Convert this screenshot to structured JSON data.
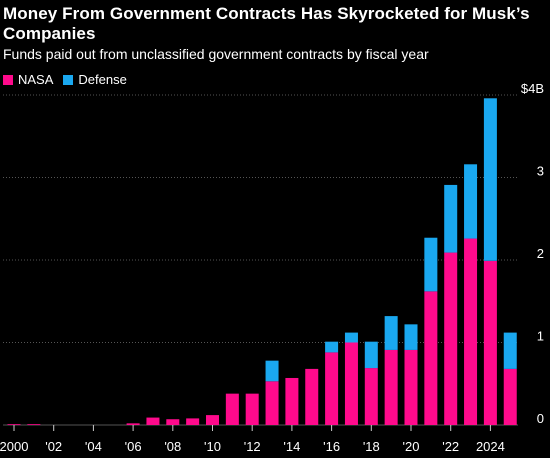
{
  "title": "Money From Government Contracts Has Skyrocketed for Musk’s Companies",
  "subtitle": "Funds paid out from unclassified government contracts by fiscal year",
  "colors": {
    "nasa": "#ff0a8c",
    "defense": "#1aa8f0",
    "background": "#000000",
    "grid": "#555555",
    "text": "#ffffff"
  },
  "chart_data": {
    "type": "bar",
    "stacked": true,
    "categories": [
      "2000",
      "2001",
      "2002",
      "2003",
      "2004",
      "2005",
      "2006",
      "2007",
      "2008",
      "2009",
      "2010",
      "2011",
      "2012",
      "2013",
      "2014",
      "2015",
      "2016",
      "2017",
      "2018",
      "2019",
      "2020",
      "2021",
      "2022",
      "2023",
      "2024",
      "2025"
    ],
    "series": [
      {
        "name": "NASA",
        "color": "#ff0a8c",
        "values": [
          0.01,
          0.01,
          0,
          0,
          0,
          0,
          0.02,
          0.09,
          0.07,
          0.08,
          0.12,
          0.38,
          0.38,
          0.53,
          0.57,
          0.68,
          0.88,
          1.0,
          0.69,
          0.91,
          0.91,
          1.62,
          2.09,
          2.26,
          1.99,
          0.68
        ]
      },
      {
        "name": "Defense",
        "color": "#1aa8f0",
        "values": [
          0,
          0,
          0,
          0,
          0,
          0,
          0,
          0,
          0,
          0,
          0,
          0,
          0,
          0.25,
          0,
          0,
          0.13,
          0.12,
          0.32,
          0.41,
          0.31,
          0.65,
          0.82,
          0.9,
          1.97,
          0.44
        ]
      }
    ],
    "xticks": [
      "2000",
      "'02",
      "'04",
      "'06",
      "'08",
      "'10",
      "'12",
      "'14",
      "'16",
      "'18",
      "'20",
      "'22",
      "2024"
    ],
    "yticks": [
      "0",
      "1",
      "2",
      "3",
      "$4B"
    ],
    "ylim": [
      0,
      4
    ],
    "grid": true,
    "legend_position": "top-left"
  }
}
